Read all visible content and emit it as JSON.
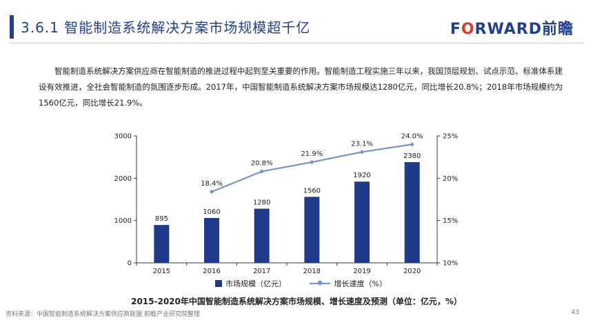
{
  "header": {
    "title": "3.6.1 智能制造系统解决方案市场规模超千亿",
    "logo_text": "F",
    "logo_o": "O",
    "logo_rest": "RWARD前瞻"
  },
  "paragraph": "智能制造系统解决方案供应商在智能制造的推进过程中起到至关重要的作用。智能制造工程实施三年以来，我国顶层规划、试点示范、标准体系建设有效推进，全社会智能制造的氛围逐步形成。2017年，中国智能制造系统解决方案市场规模达1280亿元，同比增长20.8%；2018年市场规模约为1560亿元，同比增长21.9%。",
  "colors": {
    "bar": "#1f3c8c",
    "line": "#6f95d1",
    "accent": "#1f3f8f"
  },
  "chart_data": {
    "type": "bar",
    "categories": [
      "2015",
      "2016",
      "2017",
      "2018",
      "2019",
      "2020"
    ],
    "series": [
      {
        "name": "市场规模（亿元）",
        "type": "bar",
        "axis": "left",
        "values": [
          895,
          1060,
          1280,
          1560,
          1920,
          2380
        ],
        "labels": [
          "895",
          "1060",
          "1280",
          "1560",
          "1920",
          "2380"
        ]
      },
      {
        "name": "增长速度（%）",
        "type": "line",
        "axis": "right",
        "values": [
          null,
          18.4,
          20.8,
          21.9,
          23.1,
          24.0
        ],
        "labels": [
          "",
          "18.4%",
          "20.8%",
          "21.9%",
          "23.1%",
          "24.0%"
        ]
      }
    ],
    "ylim_left": [
      0,
      3000
    ],
    "yticks_left": [
      0,
      1000,
      2000,
      3000
    ],
    "ylim_right": [
      10,
      25
    ],
    "yticks_right": [
      "10%",
      "15%",
      "20%",
      "25%"
    ],
    "title": "2015-2020年中国智能制造系统解决方案市场规模、增长速度及预测（单位：亿元，%）",
    "legend": [
      "市场规模（亿元）",
      "增长速度（%）"
    ],
    "legend_position": "bottom",
    "grid": false
  },
  "footer": {
    "source": "资料来源：中国智能制造系统解决方案供应商联盟 前瞻产业研究院整理",
    "page": "43"
  }
}
